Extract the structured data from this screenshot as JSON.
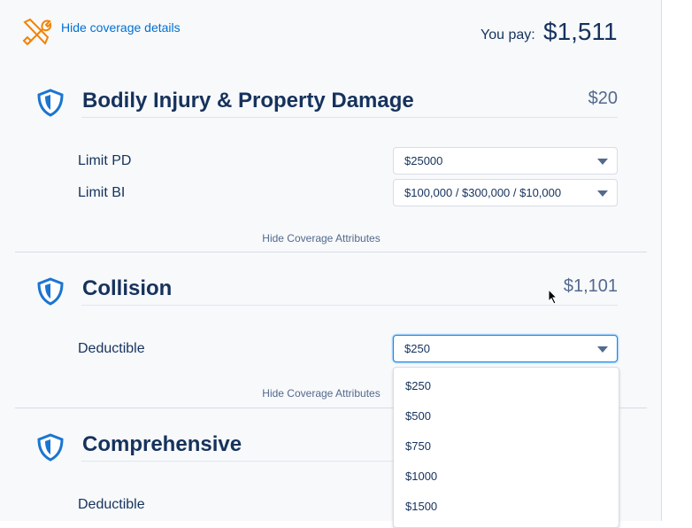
{
  "header": {
    "link": "Hide coverage details",
    "pay_label": "You pay:",
    "pay_amount": "$1,511"
  },
  "sections": [
    {
      "title": "Bodily Injury & Property Damage",
      "price": "$20",
      "fields": [
        {
          "label": "Limit PD",
          "value": "$25000"
        },
        {
          "label": "Limit BI",
          "value": "$100,000 / $300,000 / $10,000"
        }
      ],
      "toggle": "Hide Coverage Attributes"
    },
    {
      "title": "Collision",
      "price": "$1,101",
      "fields": [
        {
          "label": "Deductible",
          "value": "$250"
        }
      ],
      "toggle": "Hide Coverage Attributes"
    },
    {
      "title": "Comprehensive",
      "fields": [
        {
          "label": "Deductible"
        }
      ]
    }
  ],
  "dropdown": {
    "options": [
      "$250",
      "$500",
      "$750",
      "$1000",
      "$1500"
    ]
  }
}
